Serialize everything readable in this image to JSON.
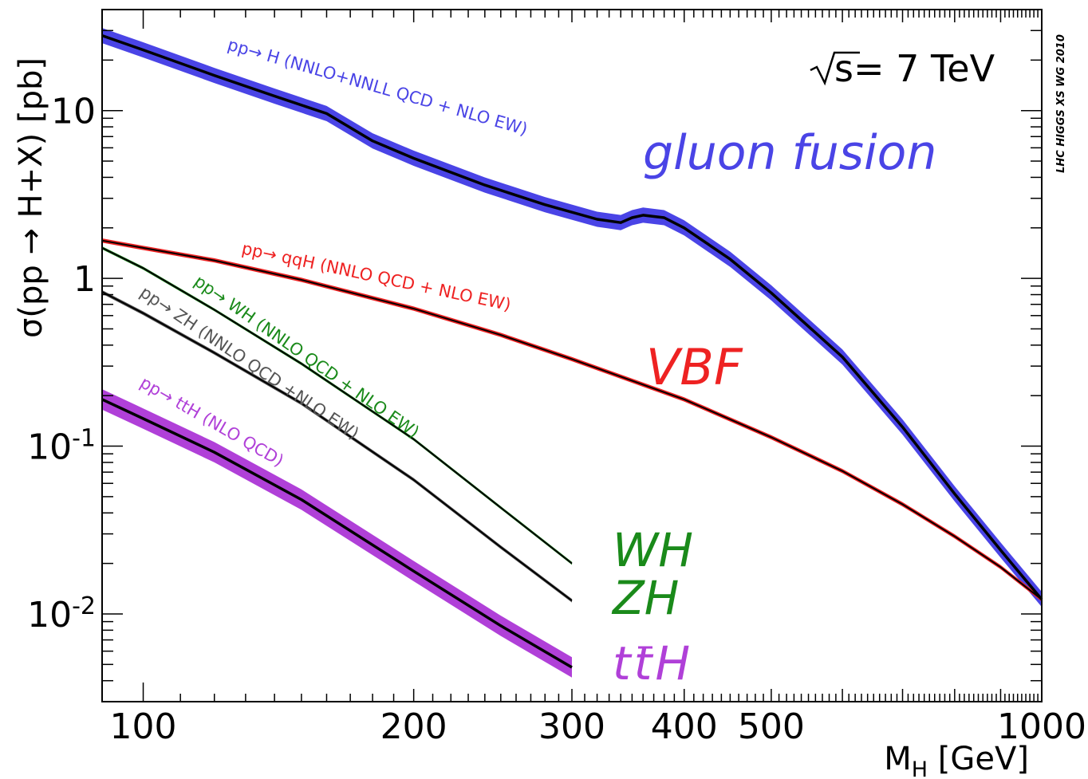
{
  "chart_data": {
    "type": "line",
    "title": "",
    "xlabel": "M",
    "xlabel_sub": "H",
    "xlabel_unit": " [GeV]",
    "ylabel": "σ(pp → H+X) [pb]",
    "xscale": "log",
    "yscale": "log",
    "xlim": [
      90,
      1000
    ],
    "ylim": [
      0.003,
      40
    ],
    "xticks": [
      {
        "value": 100,
        "label": "100"
      },
      {
        "value": 200,
        "label": "200"
      },
      {
        "value": 300,
        "label": "300"
      },
      {
        "value": 400,
        "label": "400"
      },
      {
        "value": 500,
        "label": "500"
      },
      {
        "value": 1000,
        "label": "1000"
      }
    ],
    "yticks": [
      {
        "value": 10,
        "base": "10",
        "exp": ""
      },
      {
        "value": 1,
        "base": "1",
        "exp": ""
      },
      {
        "value": 0.1,
        "base": "10",
        "exp": "-1"
      },
      {
        "value": 0.01,
        "base": "10",
        "exp": "-2"
      }
    ],
    "energy_label": "s= 7 TeV",
    "stamp": "LHC HIGGS XS WG 2010",
    "grid": false,
    "series": [
      {
        "id": "ggf",
        "label": "pp→ H (NNLO+NNLL QCD + NLO EW)",
        "big_label": "gluon fusion",
        "band_color": "#4a44e6",
        "line_color": "#000000",
        "band_rel": 0.11,
        "x": [
          90,
          100,
          120,
          140,
          160,
          180,
          200,
          240,
          280,
          320,
          340,
          350,
          360,
          380,
          400,
          450,
          500,
          600,
          700,
          800,
          900,
          1000
        ],
        "y": [
          28,
          23,
          16.2,
          12.2,
          9.6,
          6.6,
          5.2,
          3.6,
          2.75,
          2.25,
          2.15,
          2.3,
          2.38,
          2.3,
          2.0,
          1.3,
          0.82,
          0.34,
          0.13,
          0.052,
          0.024,
          0.0122
        ]
      },
      {
        "id": "vbf",
        "label": "pp→ qqH (NNLO QCD + NLO EW)",
        "big_label": "VBF",
        "band_color": "#ee2222",
        "line_color": "#000000",
        "band_rel": 0.03,
        "x": [
          90,
          100,
          120,
          150,
          200,
          250,
          300,
          400,
          500,
          600,
          700,
          800,
          900,
          1000
        ],
        "y": [
          1.68,
          1.52,
          1.28,
          0.98,
          0.66,
          0.46,
          0.33,
          0.19,
          0.113,
          0.071,
          0.045,
          0.029,
          0.019,
          0.0122
        ]
      },
      {
        "id": "wh",
        "label": "pp→ WH (NNLO QCD + NLO EW)",
        "big_label": "WH",
        "band_color": "#1a8a1a",
        "line_color": "#000000",
        "band_rel": 0.02,
        "x": [
          90,
          100,
          120,
          150,
          200,
          250,
          300
        ],
        "y": [
          1.52,
          1.15,
          0.65,
          0.31,
          0.11,
          0.043,
          0.02
        ]
      },
      {
        "id": "zh",
        "label": "pp→ ZH (NNLO QCD +NLO EW)",
        "big_label": "ZH",
        "band_color": "#555555",
        "line_color": "#000000",
        "band_rel": 0.025,
        "x": [
          90,
          100,
          120,
          150,
          200,
          250,
          300
        ],
        "y": [
          0.83,
          0.62,
          0.36,
          0.18,
          0.063,
          0.025,
          0.012
        ]
      },
      {
        "id": "tth",
        "label": "pp→ ttH (NLO QCD)",
        "big_label": "ttH",
        "band_color": "#b040d8",
        "line_color": "#000000",
        "band_rel": 0.15,
        "x": [
          90,
          100,
          120,
          150,
          200,
          250,
          300
        ],
        "y": [
          0.19,
          0.146,
          0.092,
          0.048,
          0.018,
          0.0085,
          0.0048
        ]
      }
    ]
  },
  "colors": {
    "ggf_text": "#4a44e6",
    "vbf_text": "#ee2222",
    "wh_text": "#1a8a1a",
    "zh_text": "#555555",
    "tth_text": "#b040d8",
    "wh_big": "#1a8a1a",
    "zh_big": "#1a8a1a"
  }
}
